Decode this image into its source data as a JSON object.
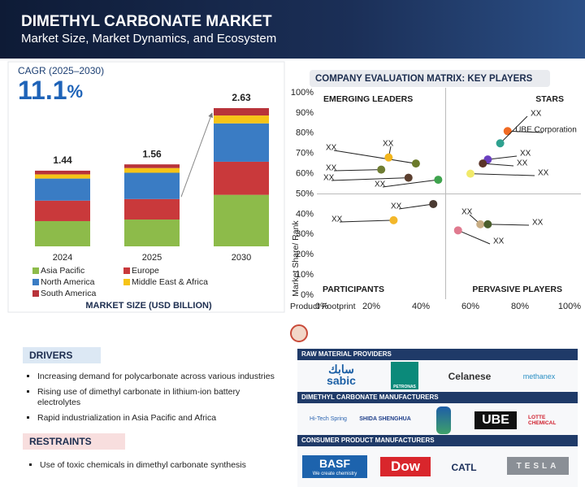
{
  "header": {
    "title": "DIMETHYL CARBONATE MARKET",
    "subtitle": "Market Size, Market Dynamics, and Ecosystem"
  },
  "chart_data": [
    {
      "type": "bar",
      "stacked": true,
      "cagr_label": "CAGR (2025–2030)",
      "cagr_value": "11.1",
      "cagr_unit": "%",
      "x_label": "MARKET SIZE (USD BILLION)",
      "categories": [
        "2024",
        "2025",
        "2030"
      ],
      "totals": [
        1.44,
        1.56,
        2.63
      ],
      "series": [
        {
          "name": "Asia Pacific",
          "color": "#8dbb4a",
          "values": [
            0.48,
            0.51,
            0.98
          ]
        },
        {
          "name": "Europe",
          "color": "#c9393b",
          "values": [
            0.39,
            0.39,
            0.63
          ]
        },
        {
          "name": "North America",
          "color": "#3a7cc4",
          "values": [
            0.42,
            0.5,
            0.73
          ]
        },
        {
          "name": "Middle East & Africa",
          "color": "#f6c417",
          "values": [
            0.08,
            0.09,
            0.15
          ]
        },
        {
          "name": "South America",
          "color": "#b8333a",
          "values": [
            0.07,
            0.07,
            0.14
          ]
        }
      ]
    },
    {
      "type": "scatter",
      "title": "COMPANY EVALUATION MATRIX: KEY PLAYERS",
      "x_label": "Product Footprint",
      "y_label": "Market Share/ Rank",
      "xlim": [
        0,
        100
      ],
      "ylim": [
        0,
        100
      ],
      "xticks": [
        {
          "value": 0,
          "label": "0%"
        },
        {
          "value": 20,
          "label": "20%"
        },
        {
          "value": 40,
          "label": "40%"
        },
        {
          "value": 60,
          "label": "60%"
        },
        {
          "value": 80,
          "label": "80%"
        },
        {
          "value": 100,
          "label": "100%"
        }
      ],
      "yticks": [
        {
          "value": 0,
          "label": "0%"
        },
        {
          "value": 10,
          "label": "10%"
        },
        {
          "value": 20,
          "label": "20%"
        },
        {
          "value": 30,
          "label": "30%"
        },
        {
          "value": 40,
          "label": "40%"
        },
        {
          "value": 50,
          "label": "50%"
        },
        {
          "value": 60,
          "label": "60%"
        },
        {
          "value": 70,
          "label": "70%"
        },
        {
          "value": 80,
          "label": "80%"
        },
        {
          "value": 90,
          "label": "90%"
        },
        {
          "value": 100,
          "label": "100%"
        }
      ],
      "quadrants": [
        "EMERGING LEADERS",
        "STARS",
        "PARTICIPANTS",
        "PERVASIVE PLAYERS"
      ],
      "points": [
        {
          "label": "XX",
          "color": "#6b7a2a",
          "x": 38,
          "y": 65
        },
        {
          "label": "XX",
          "color": "#f2b51c",
          "x": 27,
          "y": 68
        },
        {
          "label": "XX",
          "color": "#6f7d33",
          "x": 24,
          "y": 62
        },
        {
          "label": "XX",
          "color": "#5c3f2f",
          "x": 35,
          "y": 58
        },
        {
          "label": "XX",
          "color": "#3fa34d",
          "x": 47,
          "y": 57
        },
        {
          "label": "XX",
          "color": "#4a3a32",
          "x": 45,
          "y": 45
        },
        {
          "label": "XX",
          "color": "#f3b72a",
          "x": 29,
          "y": 37
        },
        {
          "label": "UBE Corporation",
          "color": "#f06a23",
          "x": 75,
          "y": 81
        },
        {
          "label": "XX",
          "color": "#2fa18f",
          "x": 72,
          "y": 75
        },
        {
          "label": "XX",
          "color": "#6a3fc0",
          "x": 67,
          "y": 67
        },
        {
          "label": "XX",
          "color": "#5a3428",
          "x": 65,
          "y": 65
        },
        {
          "label": "XX",
          "color": "#f1ea6a",
          "x": 60,
          "y": 60
        },
        {
          "label": "XX",
          "color": "#c8ad84",
          "x": 64,
          "y": 35
        },
        {
          "label": "XX",
          "color": "#4a5e2c",
          "x": 67,
          "y": 35
        },
        {
          "label": "XX",
          "color": "#e07a8f",
          "x": 55,
          "y": 32
        }
      ]
    }
  ],
  "drivers": {
    "title": "DRIVERS",
    "items": [
      "Increasing demand for polycarbonate across various industries",
      "Rising use of dimethyl carbonate in lithium-ion battery electrolytes",
      "Rapid industrialization in Asia Pacific and Africa"
    ]
  },
  "restraints": {
    "title": "RESTRAINTS",
    "items": [
      "Use of toxic chemicals in dimethyl carbonate synthesis"
    ]
  },
  "ecosystem": [
    {
      "title": "RAW MATERIAL PROVIDERS",
      "logos": [
        "سابك",
        "sabic",
        "PETRONAS",
        "Celanese",
        "methanex"
      ]
    },
    {
      "title": "DIMETHYL CARBONATE MANUFACTURERS",
      "logos": [
        "Hi-Tech Spring",
        "SHIDA SHENGHUA",
        "UBE",
        "LOTTE CHEMICAL"
      ]
    },
    {
      "title": "CONSUMER PRODUCT MANUFACTURERS",
      "logos": [
        "BASF",
        "We create chemistry",
        "Dow",
        "CATL",
        "TESLA"
      ]
    }
  ]
}
